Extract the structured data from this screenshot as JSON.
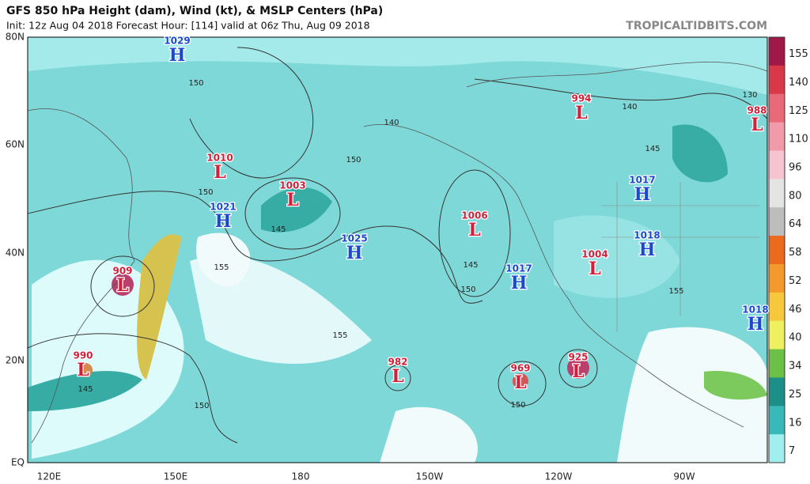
{
  "header": {
    "title": "GFS 850 hPa Height (dam), Wind (kt), & MSLP Centers (hPa)",
    "subtitle": "Init: 12z Aug 04 2018   Forecast Hour: [114]   valid at 06z Thu, Aug 09 2018",
    "credit": "TROPICALTIDBITS.COM"
  },
  "axes": {
    "lat_labels": [
      "80N",
      "60N",
      "40N",
      "20N",
      "EQ"
    ],
    "lon_labels": [
      "120E",
      "150E",
      "180",
      "150W",
      "120W",
      "90W"
    ]
  },
  "colorbar": {
    "labels": [
      "155",
      "140",
      "125",
      "110",
      "96",
      "80",
      "64",
      "58",
      "52",
      "46",
      "40",
      "34",
      "25",
      "16",
      "7"
    ],
    "colors": [
      "#a01848",
      "#d83848",
      "#e86a78",
      "#f09aaa",
      "#f6c4d0",
      "#e4e4e4",
      "#bdbdbd",
      "#ec6a1c",
      "#f49a2c",
      "#f8c83c",
      "#eef060",
      "#6cc048",
      "#1c8f88",
      "#38b8b8",
      "#a0eeee"
    ]
  },
  "centers": [
    {
      "letter": "H",
      "value": "1029"
    },
    {
      "letter": "L",
      "value": "1010"
    },
    {
      "letter": "L",
      "value": "1003"
    },
    {
      "letter": "H",
      "value": "1021"
    },
    {
      "letter": "H",
      "value": "1025"
    },
    {
      "letter": "L",
      "value": "1006"
    },
    {
      "letter": "H",
      "value": "1017"
    },
    {
      "letter": "L",
      "value": "1004"
    },
    {
      "letter": "H",
      "value": "1017"
    },
    {
      "letter": "H",
      "value": "1018"
    },
    {
      "letter": "L",
      "value": "994"
    },
    {
      "letter": "L",
      "value": "988"
    },
    {
      "letter": "H",
      "value": "1018"
    },
    {
      "letter": "L",
      "value": "909"
    },
    {
      "letter": "L",
      "value": "990"
    },
    {
      "letter": "L",
      "value": "982"
    },
    {
      "letter": "L",
      "value": "969"
    },
    {
      "letter": "L",
      "value": "925"
    }
  ],
  "contour_labels": [
    "150",
    "150",
    "150",
    "140",
    "145",
    "145",
    "155",
    "155",
    "150",
    "145",
    "150",
    "140",
    "145",
    "130",
    "155",
    "150"
  ]
}
